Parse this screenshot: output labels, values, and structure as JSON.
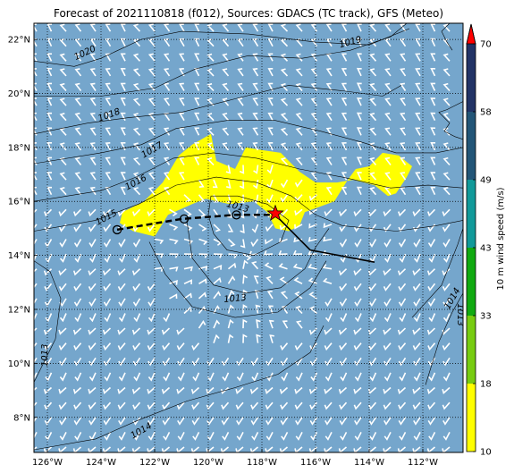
{
  "title": "Forecast of 2021110818 (f012), Sources: GDACS (TC track), GFS (Meteo)",
  "colors": {
    "ocean": "#75a6cc",
    "wind_barb": "#ffffff",
    "wind_area": "#ffff00",
    "isobar": "#000000",
    "track": "#000000",
    "star": "#ff0000"
  },
  "map": {
    "lon_range": [
      -126.5,
      -110.5
    ],
    "lat_range": [
      6.7,
      22.6
    ],
    "lon_ticks": [
      {
        "value": -126,
        "label": "126°W"
      },
      {
        "value": -124,
        "label": "124°W"
      },
      {
        "value": -122,
        "label": "122°W"
      },
      {
        "value": -120,
        "label": "120°W"
      },
      {
        "value": -118,
        "label": "118°W"
      },
      {
        "value": -116,
        "label": "116°W"
      },
      {
        "value": -114,
        "label": "114°W"
      },
      {
        "value": -112,
        "label": "112°W"
      }
    ],
    "lat_ticks": [
      {
        "value": 8,
        "label": "8°N"
      },
      {
        "value": 10,
        "label": "10°N"
      },
      {
        "value": 12,
        "label": "12°N"
      },
      {
        "value": 14,
        "label": "14°N"
      },
      {
        "value": 16,
        "label": "16°N"
      },
      {
        "value": 18,
        "label": "18°N"
      },
      {
        "value": 20,
        "label": "20°N"
      },
      {
        "value": 22,
        "label": "22°N"
      }
    ],
    "isobar_labels": [
      {
        "text": "1020",
        "lon": -124.6,
        "lat": 21.5,
        "rot": -25
      },
      {
        "text": "1019",
        "lon": -114.7,
        "lat": 21.9,
        "rot": -15
      },
      {
        "text": "1018",
        "lon": -123.7,
        "lat": 19.2,
        "rot": -20
      },
      {
        "text": "1017",
        "lon": -122.1,
        "lat": 17.9,
        "rot": -30
      },
      {
        "text": "1016",
        "lon": -122.7,
        "lat": 16.7,
        "rot": -28
      },
      {
        "text": "1015",
        "lon": -123.8,
        "lat": 15.4,
        "rot": -28
      },
      {
        "text": "1013",
        "lon": -118.9,
        "lat": 15.8,
        "rot": 15
      },
      {
        "text": "1013",
        "lon": -119.0,
        "lat": 12.4,
        "rot": -5
      },
      {
        "text": "1014",
        "lon": -110.9,
        "lat": 12.4,
        "rot": -60
      },
      {
        "text": "1013",
        "lon": -110.6,
        "lat": 11.8,
        "rot": 90
      },
      {
        "text": "1013",
        "lon": -126.1,
        "lat": 10.3,
        "rot": -90
      },
      {
        "text": "1014",
        "lon": -122.5,
        "lat": 7.5,
        "rot": -30
      }
    ],
    "track_past": [
      [
        -123.4,
        14.95
      ],
      [
        -121.0,
        15.35
      ],
      [
        -119.0,
        15.5
      ],
      [
        -117.5,
        15.5
      ]
    ],
    "track_forecast": [
      [
        -117.5,
        15.5
      ],
      [
        -116.2,
        14.2
      ],
      [
        -113.8,
        13.75
      ]
    ],
    "track_points": [
      [
        -123.4,
        14.95
      ],
      [
        -120.9,
        15.35
      ],
      [
        -118.95,
        15.5
      ]
    ],
    "current_position": {
      "lon": -117.5,
      "lat": 15.55
    }
  },
  "colorbar": {
    "label": "10 m wind speed (m/s)",
    "ticks": [
      "10",
      "18",
      "33",
      "43",
      "49",
      "58",
      "70"
    ],
    "segments": [
      {
        "from": 10,
        "to": 18,
        "color": "#ffff00"
      },
      {
        "from": 18,
        "to": 33,
        "color": "#77cc11"
      },
      {
        "from": 33,
        "to": 43,
        "color": "#11aa11"
      },
      {
        "from": 43,
        "to": 49,
        "color": "#119999"
      },
      {
        "from": 49,
        "to": 58,
        "color": "#225577"
      },
      {
        "from": 58,
        "to": 70,
        "color": "#223366"
      }
    ],
    "extend_color": "#ff0000"
  }
}
